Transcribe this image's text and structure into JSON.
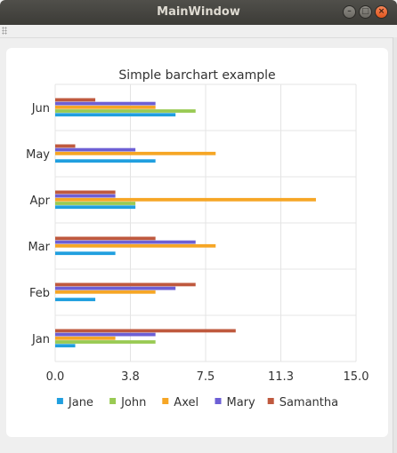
{
  "window": {
    "title": "MainWindow",
    "buttons": {
      "minimize": "–",
      "maximize": "□",
      "close": "×"
    }
  },
  "chart_data": {
    "type": "bar",
    "orientation": "horizontal",
    "title": "Simple barchart example",
    "categories": [
      "Jan",
      "Feb",
      "Mar",
      "Apr",
      "May",
      "Jun"
    ],
    "series": [
      {
        "name": "Jane",
        "color": "#209fdf",
        "values": [
          1,
          2,
          3,
          4,
          5,
          6
        ]
      },
      {
        "name": "John",
        "color": "#99ca53",
        "values": [
          5,
          0,
          0,
          4,
          0,
          7
        ]
      },
      {
        "name": "Axel",
        "color": "#f6a625",
        "values": [
          3,
          5,
          8,
          13,
          8,
          5
        ]
      },
      {
        "name": "Mary",
        "color": "#6d5fd5",
        "values": [
          5,
          6,
          7,
          3,
          4,
          5
        ]
      },
      {
        "name": "Samantha",
        "color": "#bf593e",
        "values": [
          9,
          7,
          5,
          3,
          1,
          2
        ]
      }
    ],
    "xaxis": {
      "min": 0,
      "max": 15,
      "tick_labels": [
        "0.0",
        "3.8",
        "7.5",
        "11.3",
        "15.0"
      ]
    },
    "grid": true,
    "legend_position": "bottom"
  }
}
